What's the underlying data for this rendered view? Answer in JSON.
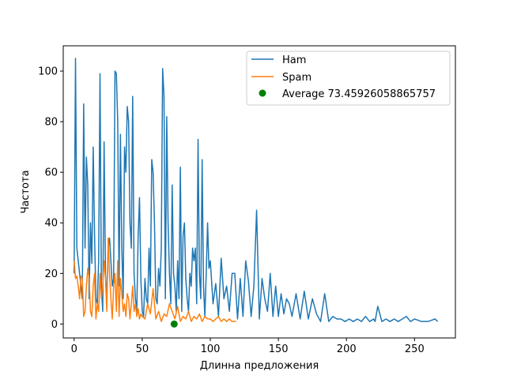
{
  "chart_data": {
    "type": "line",
    "xlabel": "Длинна предложения",
    "ylabel": "Частота",
    "xlim": [
      -8,
      280
    ],
    "ylim": [
      -5.5,
      110
    ],
    "xticks": [
      0,
      50,
      100,
      150,
      200,
      250
    ],
    "yticks": [
      0,
      20,
      40,
      60,
      80,
      100
    ],
    "grid": false,
    "legend_position": "top-right",
    "series": [
      {
        "name": "Ham",
        "color": "#1f77b4",
        "x": [
          0,
          1,
          2,
          3,
          4,
          5,
          6,
          7,
          8,
          9,
          10,
          11,
          12,
          13,
          14,
          15,
          16,
          17,
          18,
          19,
          20,
          21,
          22,
          23,
          24,
          25,
          26,
          27,
          28,
          29,
          30,
          31,
          32,
          33,
          34,
          35,
          36,
          37,
          38,
          39,
          40,
          41,
          42,
          43,
          44,
          45,
          46,
          47,
          48,
          49,
          50,
          51,
          52,
          53,
          54,
          55,
          56,
          57,
          58,
          59,
          60,
          61,
          62,
          63,
          64,
          65,
          66,
          67,
          68,
          69,
          70,
          71,
          72,
          73,
          74,
          75,
          76,
          77,
          78,
          79,
          80,
          81,
          82,
          83,
          84,
          85,
          86,
          87,
          88,
          89,
          90,
          91,
          92,
          93,
          94,
          95,
          96,
          97,
          98,
          99,
          100,
          102,
          104,
          106,
          108,
          110,
          112,
          114,
          116,
          118,
          120,
          122,
          124,
          126,
          128,
          130,
          132,
          134,
          136,
          138,
          140,
          142,
          144,
          146,
          148,
          150,
          152,
          154,
          156,
          158,
          160,
          163,
          166,
          169,
          172,
          175,
          178,
          181,
          184,
          187,
          190,
          193,
          196,
          199,
          202,
          205,
          208,
          211,
          214,
          217,
          220,
          221,
          223,
          226,
          229,
          232,
          235,
          238,
          241,
          244,
          247,
          250,
          255,
          260,
          265,
          267
        ],
        "y": [
          20,
          105,
          30,
          25,
          20,
          15,
          10,
          87,
          30,
          66,
          55,
          10,
          40,
          24,
          70,
          35,
          10,
          8,
          25,
          99,
          15,
          5,
          72,
          20,
          10,
          30,
          34,
          25,
          15,
          18,
          100,
          99,
          80,
          15,
          75,
          30,
          10,
          70,
          60,
          86,
          80,
          40,
          30,
          90,
          20,
          10,
          5,
          35,
          50,
          18,
          5,
          3,
          18,
          10,
          8,
          30,
          15,
          65,
          60,
          40,
          10,
          8,
          22,
          15,
          30,
          101,
          90,
          10,
          82,
          40,
          20,
          8,
          55,
          20,
          15,
          5,
          25,
          10,
          62,
          5,
          35,
          40,
          18,
          10,
          5,
          20,
          15,
          30,
          25,
          30,
          8,
          73,
          20,
          10,
          65,
          15,
          3,
          20,
          40,
          22,
          25,
          8,
          16,
          3,
          26,
          10,
          15,
          5,
          20,
          20,
          2,
          18,
          3,
          25,
          17,
          3,
          15,
          45,
          2,
          18,
          10,
          5,
          20,
          3,
          15,
          3,
          12,
          4,
          10,
          8,
          3,
          12,
          2,
          13,
          2,
          10,
          4,
          1,
          12,
          1,
          3,
          2,
          2,
          1,
          2,
          1,
          2,
          1,
          3,
          1,
          2,
          1,
          7,
          1,
          2,
          1,
          2,
          1,
          2,
          3,
          1,
          2,
          1,
          1,
          2,
          1
        ],
        "x_note": "",
        "y_note": ""
      },
      {
        "name": "Spam",
        "color": "#ff7f0e",
        "x": [
          0,
          1,
          2,
          3,
          4,
          5,
          6,
          7,
          8,
          9,
          10,
          11,
          12,
          13,
          14,
          15,
          16,
          17,
          18,
          19,
          20,
          21,
          22,
          23,
          24,
          25,
          26,
          27,
          28,
          29,
          30,
          31,
          32,
          33,
          34,
          35,
          36,
          37,
          38,
          39,
          40,
          41,
          42,
          43,
          44,
          45,
          46,
          47,
          48,
          49,
          50,
          52,
          54,
          56,
          58,
          60,
          62,
          64,
          66,
          68,
          70,
          72,
          74,
          76,
          78,
          80,
          82,
          84,
          86,
          88,
          90,
          92,
          94,
          96,
          98,
          100,
          102,
          104,
          106,
          108,
          110,
          112,
          114,
          116,
          118,
          119
        ],
        "y": [
          25,
          18,
          19,
          15,
          10,
          19,
          18,
          3,
          5,
          15,
          22,
          18,
          5,
          3,
          15,
          20,
          2,
          8,
          5,
          20,
          10,
          15,
          25,
          18,
          5,
          34,
          20,
          10,
          2,
          15,
          20,
          5,
          25,
          3,
          18,
          12,
          5,
          8,
          3,
          12,
          10,
          2,
          8,
          15,
          5,
          8,
          3,
          6,
          2,
          4,
          3,
          2,
          8,
          4,
          14,
          2,
          5,
          1,
          4,
          3,
          8,
          5,
          2,
          7,
          1,
          3,
          2,
          5,
          1,
          3,
          2,
          4,
          1,
          3,
          2,
          2,
          1,
          2,
          3,
          1,
          2,
          1,
          2,
          1,
          1,
          1
        ]
      }
    ],
    "points": [
      {
        "name": "Average 73.45926058865757",
        "color": "#008000",
        "x": 73.45926058865757,
        "y": 0
      }
    ]
  }
}
